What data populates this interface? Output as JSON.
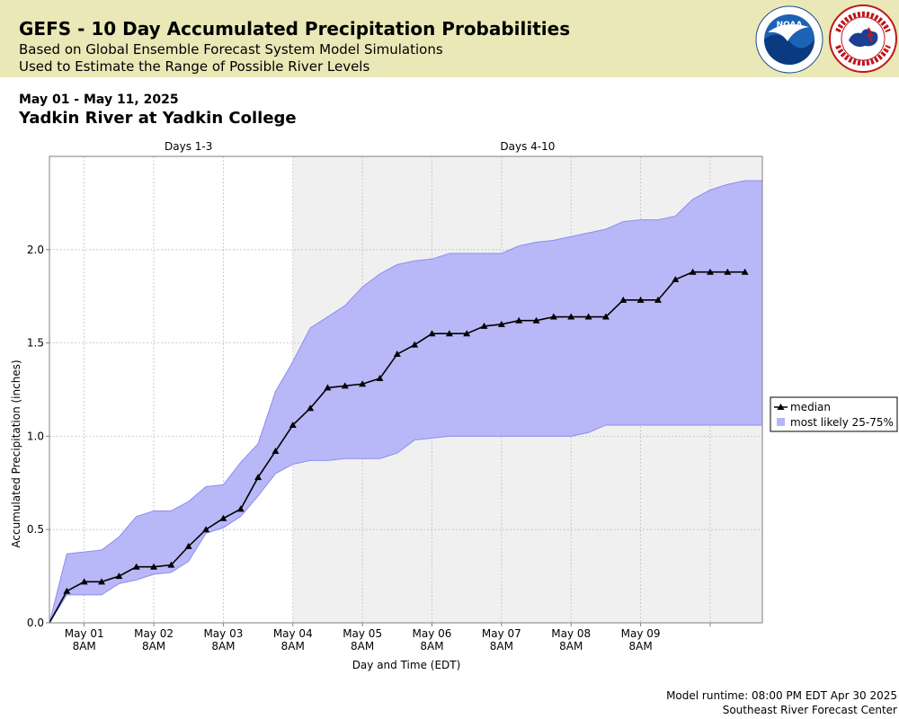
{
  "header": {
    "title": "GEFS - 10 Day Accumulated Precipitation Probabilities",
    "subtitle1": "Based on Global Ensemble Forecast System Model Simulations",
    "subtitle2": "Used to Estimate the Range of Possible River Levels",
    "noaa_logo_text": "NOAA",
    "nws_logo_text": "NATIONAL WEATHER SERVICE",
    "background_color": "#eae8b6"
  },
  "date_range": "May 01 - May 11, 2025",
  "station": "Yadkin River at Yadkin College",
  "chart_data": {
    "type": "line",
    "period_labels": [
      {
        "label": "Days 1-3",
        "start": 0,
        "end": 3
      },
      {
        "label": "Days 4-10",
        "start": 3,
        "end": 9.75
      }
    ],
    "shaded_from": 3,
    "xlabel": "Day and Time (EDT)",
    "ylabel": "Accumulated Precipitation (inches)",
    "xlim": [
      -0.5,
      9.75
    ],
    "ylim": [
      0,
      2.5
    ],
    "y_ticks": [
      0.0,
      0.5,
      1.0,
      1.5,
      2.0
    ],
    "y_tick_labels": [
      "0.0",
      "0.5",
      "1.0",
      "1.5",
      "2.0"
    ],
    "x_ticks": [
      {
        "x": 0,
        "line1": "May 01",
        "line2": "8AM"
      },
      {
        "x": 1,
        "line1": "May 02",
        "line2": "8AM"
      },
      {
        "x": 2,
        "line1": "May 03",
        "line2": "8AM"
      },
      {
        "x": 3,
        "line1": "May 04",
        "line2": "8AM"
      },
      {
        "x": 4,
        "line1": "May 05",
        "line2": "8AM"
      },
      {
        "x": 5,
        "line1": "May 06",
        "line2": "8AM"
      },
      {
        "x": 6,
        "line1": "May 07",
        "line2": "8AM"
      },
      {
        "x": 7,
        "line1": "May 08",
        "line2": "8AM"
      },
      {
        "x": 8,
        "line1": "May 09",
        "line2": "8AM"
      },
      {
        "x": 9,
        "line1": "",
        "line2": ""
      }
    ],
    "x": [
      -0.5,
      -0.25,
      0,
      0.25,
      0.5,
      0.75,
      1,
      1.25,
      1.5,
      1.75,
      2,
      2.25,
      2.5,
      2.75,
      3,
      3.25,
      3.5,
      3.75,
      4,
      4.25,
      4.5,
      4.75,
      5,
      5.25,
      5.5,
      5.75,
      6,
      6.25,
      6.5,
      6.75,
      7,
      7.25,
      7.5,
      7.75,
      8,
      8.25,
      8.5,
      8.75,
      9,
      9.25,
      9.5,
      9.75
    ],
    "series": [
      {
        "name": "median",
        "color": "#000000",
        "marker": "triangle",
        "values": [
          0.0,
          0.17,
          0.22,
          0.22,
          0.25,
          0.3,
          0.3,
          0.31,
          0.41,
          0.5,
          0.56,
          0.61,
          0.78,
          0.92,
          1.06,
          1.15,
          1.26,
          1.27,
          1.28,
          1.31,
          1.44,
          1.49,
          1.55,
          1.55,
          1.55,
          1.59,
          1.6,
          1.62,
          1.62,
          1.64,
          1.64,
          1.64,
          1.64,
          1.73,
          1.73,
          1.73,
          1.84,
          1.88,
          1.88,
          1.88,
          1.88,
          null
        ]
      },
      {
        "name": "most likely 25-75%",
        "color": "#b4b4f8",
        "type": "band",
        "lower": [
          0.0,
          0.15,
          0.15,
          0.15,
          0.21,
          0.23,
          0.26,
          0.27,
          0.33,
          0.48,
          0.51,
          0.57,
          0.68,
          0.8,
          0.85,
          0.87,
          0.87,
          0.88,
          0.88,
          0.88,
          0.91,
          0.98,
          0.99,
          1.0,
          1.0,
          1.0,
          1.0,
          1.0,
          1.0,
          1.0,
          1.0,
          1.02,
          1.06,
          1.06,
          1.06,
          1.06,
          1.06,
          1.06,
          1.06,
          1.06,
          1.06,
          1.06
        ],
        "upper": [
          0.0,
          0.37,
          0.38,
          0.39,
          0.46,
          0.57,
          0.6,
          0.6,
          0.65,
          0.73,
          0.74,
          0.86,
          0.96,
          1.24,
          1.4,
          1.58,
          1.64,
          1.7,
          1.8,
          1.87,
          1.92,
          1.94,
          1.95,
          1.98,
          1.98,
          1.98,
          1.98,
          2.02,
          2.04,
          2.05,
          2.07,
          2.09,
          2.11,
          2.15,
          2.16,
          2.16,
          2.18,
          2.27,
          2.32,
          2.35,
          2.37,
          2.37
        ]
      }
    ],
    "legend_position": "right",
    "grid": true
  },
  "footer": {
    "runtime": "Model runtime: 08:00 PM EDT Apr 30 2025",
    "center": "Southeast River Forecast Center"
  }
}
